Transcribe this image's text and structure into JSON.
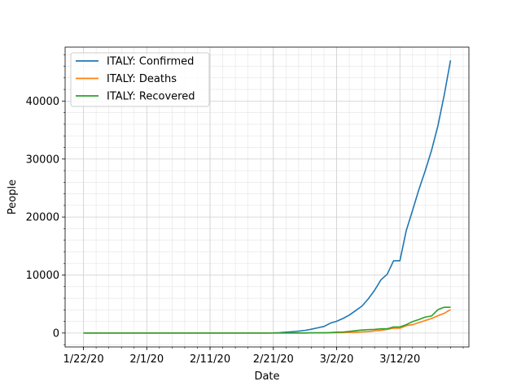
{
  "chart_data": {
    "type": "line",
    "xlabel": "Date",
    "ylabel": "People",
    "x": [
      "1/22/20",
      "1/23/20",
      "1/24/20",
      "1/25/20",
      "1/26/20",
      "1/27/20",
      "1/28/20",
      "1/29/20",
      "1/30/20",
      "1/31/20",
      "2/1/20",
      "2/2/20",
      "2/3/20",
      "2/4/20",
      "2/5/20",
      "2/6/20",
      "2/7/20",
      "2/8/20",
      "2/9/20",
      "2/10/20",
      "2/11/20",
      "2/12/20",
      "2/13/20",
      "2/14/20",
      "2/15/20",
      "2/16/20",
      "2/17/20",
      "2/18/20",
      "2/19/20",
      "2/20/20",
      "2/21/20",
      "2/22/20",
      "2/23/20",
      "2/24/20",
      "2/25/20",
      "2/26/20",
      "2/27/20",
      "2/28/20",
      "2/29/20",
      "3/1/20",
      "3/2/20",
      "3/3/20",
      "3/4/20",
      "3/5/20",
      "3/6/20",
      "3/7/20",
      "3/8/20",
      "3/9/20",
      "3/10/20",
      "3/11/20",
      "3/12/20",
      "3/13/20",
      "3/14/20",
      "3/15/20",
      "3/16/20",
      "3/17/20",
      "3/18/20",
      "3/19/20",
      "3/20/20"
    ],
    "x_ticks": [
      "1/22/20",
      "2/1/20",
      "2/11/20",
      "2/21/20",
      "3/2/20",
      "3/12/20"
    ],
    "y_ticks": [
      0,
      10000,
      20000,
      30000,
      40000
    ],
    "ylim": [
      -2400,
      49300
    ],
    "grid": true,
    "legend_position": "top-left",
    "series": [
      {
        "name": "ITALY: Confirmed",
        "color": "#1f77b4",
        "values": [
          0,
          0,
          0,
          0,
          0,
          0,
          0,
          0,
          0,
          2,
          2,
          2,
          2,
          2,
          2,
          2,
          3,
          3,
          3,
          3,
          3,
          3,
          3,
          3,
          3,
          3,
          3,
          3,
          3,
          3,
          20,
          62,
          155,
          229,
          322,
          453,
          655,
          888,
          1128,
          1694,
          2036,
          2502,
          3089,
          3858,
          4636,
          5883,
          7375,
          9172,
          10149,
          12462,
          12462,
          17660,
          21157,
          24747,
          27980,
          31506,
          35713,
          41035,
          47021
        ]
      },
      {
        "name": "ITALY: Deaths",
        "color": "#ff7f0e",
        "values": [
          0,
          0,
          0,
          0,
          0,
          0,
          0,
          0,
          0,
          0,
          0,
          0,
          0,
          0,
          0,
          0,
          0,
          0,
          0,
          0,
          0,
          0,
          0,
          0,
          0,
          0,
          0,
          0,
          0,
          0,
          1,
          2,
          3,
          7,
          10,
          12,
          17,
          21,
          29,
          34,
          52,
          79,
          107,
          148,
          197,
          233,
          366,
          463,
          631,
          827,
          827,
          1266,
          1441,
          1809,
          2158,
          2503,
          2978,
          3405,
          4032
        ]
      },
      {
        "name": "ITALY: Recovered",
        "color": "#2ca02c",
        "values": [
          0,
          0,
          0,
          0,
          0,
          0,
          0,
          0,
          0,
          0,
          0,
          0,
          0,
          0,
          0,
          0,
          0,
          0,
          0,
          0,
          0,
          0,
          0,
          0,
          0,
          0,
          0,
          0,
          0,
          0,
          0,
          1,
          2,
          1,
          1,
          3,
          45,
          46,
          46,
          83,
          149,
          160,
          276,
          414,
          523,
          589,
          622,
          724,
          724,
          1045,
          1045,
          1439,
          1966,
          2335,
          2749,
          2941,
          4025,
          4440,
          4440
        ]
      }
    ]
  }
}
